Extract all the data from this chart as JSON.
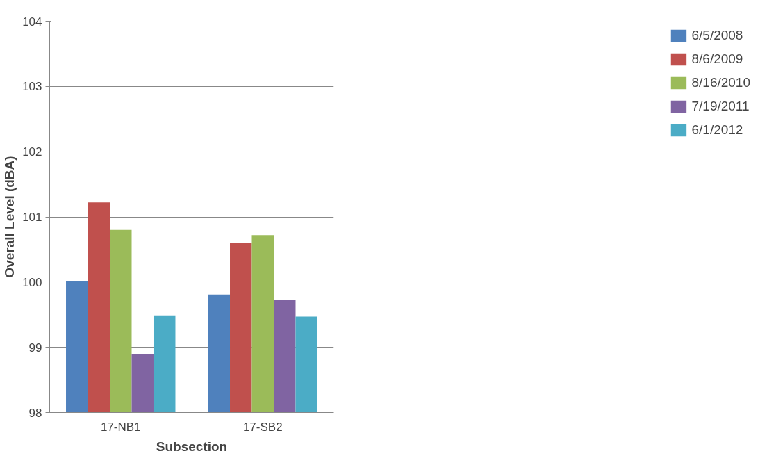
{
  "chart_data": {
    "type": "bar",
    "xlabel": "Subsection",
    "ylabel": "Overall Level (dBA)",
    "categories": [
      "17-NB1",
      "17-SB2"
    ],
    "series": [
      {
        "name": "6/5/2008",
        "color": "#4f81bd",
        "values": [
          100.02,
          99.81
        ]
      },
      {
        "name": "8/6/2009",
        "color": "#c0504d",
        "values": [
          101.22,
          100.6
        ]
      },
      {
        "name": "8/16/2010",
        "color": "#9bbb59",
        "values": [
          100.8,
          100.72
        ]
      },
      {
        "name": "7/19/2011",
        "color": "#8064a2",
        "values": [
          98.89,
          99.72
        ]
      },
      {
        "name": "6/1/2012",
        "color": "#4bacc6",
        "values": [
          99.49,
          99.47
        ]
      }
    ],
    "ylim": [
      98,
      104
    ],
    "yticks": [
      98,
      99,
      100,
      101,
      102,
      103,
      104
    ],
    "grid": "y",
    "legend": "right"
  }
}
